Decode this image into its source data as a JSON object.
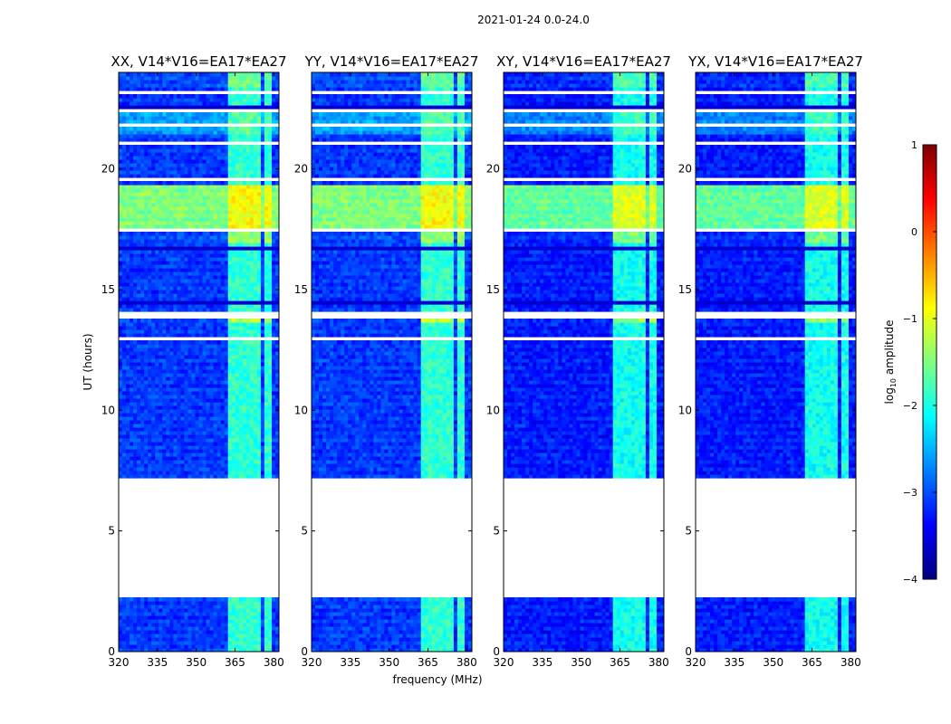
{
  "chart_data": {
    "type": "heatmap",
    "suptitle": "2021-01-24 0.0-24.0",
    "xlabel": "frequency (MHz)",
    "ylabel": "UT (hours)",
    "xlim": [
      320,
      382
    ],
    "ylim": [
      0,
      24
    ],
    "x_ticks": [
      320,
      335,
      350,
      365,
      380
    ],
    "x_tick_labels": [
      "320",
      "335",
      "350",
      "365",
      "380"
    ],
    "y_ticks": [
      0,
      5,
      10,
      15,
      20
    ],
    "y_tick_labels": [
      "0",
      "5",
      "10",
      "15",
      "20"
    ],
    "colorbar": {
      "label": "log10 amplitude",
      "label_main": "log",
      "label_sub": "10",
      "label_rest": " amplitude",
      "range": [
        -4,
        1
      ],
      "ticks": [
        1,
        0,
        -1,
        -2,
        -3,
        -4
      ],
      "tick_labels": [
        "1",
        "0",
        "−1",
        "−2",
        "−3",
        "−4"
      ],
      "colormap": [
        "#00007f",
        "#0000ff",
        "#007fff",
        "#00ffff",
        "#7fff7f",
        "#ffff00",
        "#ff7f00",
        "#ff0000",
        "#7f0000"
      ]
    },
    "panels": [
      {
        "title": "XX, V14*V16=EA17*EA27"
      },
      {
        "title": "YY, V14*V16=EA17*EA27"
      },
      {
        "title": "XY, V14*V16=EA17*EA27"
      },
      {
        "title": "YX, V14*V16=EA17*EA27"
      }
    ],
    "background_level": -3.1,
    "bright_band_mhz": [
      [
        362.5,
        366.5
      ],
      [
        367.0,
        370.5
      ],
      [
        371.0,
        375.5
      ],
      [
        376.0,
        379.5
      ]
    ],
    "bright_band_level": -1.9,
    "no_data_ut": [
      [
        2.25,
        7.15
      ]
    ],
    "flagged_ut": [
      [
        1.45,
        1.55
      ],
      [
        7.3,
        7.35
      ],
      [
        7.5,
        7.55
      ],
      [
        8.25,
        8.32
      ],
      [
        8.5,
        8.55
      ],
      [
        9.6,
        9.65
      ],
      [
        11.7,
        11.75
      ],
      [
        12.45,
        12.5
      ],
      [
        12.9,
        13.1
      ],
      [
        13.85,
        14.15
      ],
      [
        16.2,
        16.25
      ],
      [
        17.4,
        17.5
      ],
      [
        17.8,
        17.85
      ],
      [
        19.5,
        19.6
      ],
      [
        20.8,
        20.85
      ],
      [
        21.05,
        21.1
      ],
      [
        21.8,
        21.85
      ],
      [
        22.4,
        22.45
      ],
      [
        23.1,
        23.3
      ]
    ],
    "dark_ut": [
      [
        10.8,
        10.85
      ],
      [
        10.15,
        10.2
      ],
      [
        14.45,
        14.55
      ],
      [
        15.0,
        15.05
      ],
      [
        16.7,
        16.75
      ],
      [
        22.55,
        22.6
      ]
    ],
    "rfi_ut": [
      {
        "ut": [
          17.6,
          19.4
        ],
        "level": -1.5,
        "band_level": -0.9
      },
      {
        "ut": [
          16.9,
          17.35
        ],
        "level": -3.0,
        "band_level": -1.4
      },
      {
        "ut": [
          21.4,
          22.3
        ],
        "level": -2.6,
        "band_level": -1.7
      },
      {
        "ut": [
          13.6,
          13.8
        ],
        "level": -3.0,
        "band_level": -1.2
      },
      {
        "ut": [
          23.4,
          24.0
        ],
        "level": -3.0,
        "band_level": -1.6
      }
    ]
  }
}
